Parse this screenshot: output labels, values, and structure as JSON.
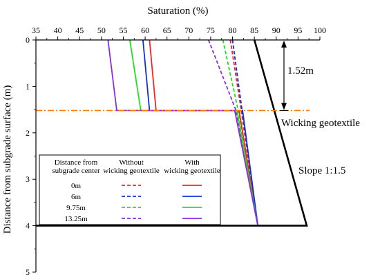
{
  "chart_data": {
    "type": "line",
    "xlabel": "Saturation (%)",
    "ylabel": "Distance from subgrade surface (m)",
    "xlim": [
      35,
      100
    ],
    "ylim": [
      5,
      0
    ],
    "x_ticks": [
      35,
      40,
      45,
      50,
      55,
      60,
      65,
      70,
      75,
      80,
      85,
      90,
      95,
      100
    ],
    "y_ticks": [
      0,
      1,
      2,
      3,
      4,
      5
    ],
    "x_axis_position": "top",
    "grid": false,
    "legend": {
      "placement": "bottom-left",
      "col_headers": [
        "Distance from\nsubgrade center",
        "Without\nwicking geotextile",
        "With\nwicking geotextile"
      ],
      "rows": [
        "0m",
        "6m",
        "9.75m",
        "13.25m"
      ]
    },
    "colors": {
      "0m": "#ff2020",
      "6m": "#1030d0",
      "9.75m": "#20e020",
      "13.25m": "#8a2be2",
      "embankment": "#000000",
      "geotextile_line": "#ff7a00"
    },
    "series": [
      {
        "name": "0m",
        "condition": "Without wicking geotextile",
        "style": "dashed",
        "points": [
          [
            79.5,
            0
          ],
          [
            82.0,
            1.52
          ],
          [
            85.8,
            4
          ]
        ]
      },
      {
        "name": "6m",
        "condition": "Without wicking geotextile",
        "style": "dashed",
        "points": [
          [
            80.0,
            0
          ],
          [
            82.2,
            1.52
          ],
          [
            85.8,
            4
          ]
        ]
      },
      {
        "name": "9.75m",
        "condition": "Without wicking geotextile",
        "style": "dashed",
        "points": [
          [
            77.8,
            0
          ],
          [
            81.3,
            1.52
          ],
          [
            85.8,
            4
          ]
        ]
      },
      {
        "name": "13.25m",
        "condition": "Without wicking geotextile",
        "style": "dashed",
        "points": [
          [
            74.5,
            0
          ],
          [
            80.8,
            1.52
          ],
          [
            85.8,
            4
          ]
        ]
      },
      {
        "name": "0m",
        "condition": "With wicking geotextile",
        "style": "solid",
        "points": [
          [
            61.0,
            0
          ],
          [
            62.5,
            1.52
          ],
          [
            81.5,
            1.52
          ],
          [
            85.8,
            4
          ]
        ]
      },
      {
        "name": "6m",
        "condition": "With wicking geotextile",
        "style": "solid",
        "points": [
          [
            59.5,
            0
          ],
          [
            61.0,
            1.52
          ],
          [
            82.3,
            1.52
          ],
          [
            85.8,
            4
          ]
        ]
      },
      {
        "name": "9.75m",
        "condition": "With wicking geotextile",
        "style": "solid",
        "points": [
          [
            56.5,
            0
          ],
          [
            59.0,
            1.52
          ],
          [
            81.0,
            1.52
          ],
          [
            85.8,
            4
          ]
        ]
      },
      {
        "name": "13.25m",
        "condition": "With wicking geotextile",
        "style": "solid",
        "points": [
          [
            51.5,
            0
          ],
          [
            53.5,
            1.52
          ],
          [
            80.5,
            1.52
          ],
          [
            85.8,
            4
          ]
        ]
      }
    ],
    "embankment_outline": [
      [
        85.0,
        0
      ],
      [
        97.0,
        4
      ],
      [
        35.0,
        4
      ]
    ],
    "geotextile_depth": 1.52,
    "annotations": {
      "depth_label": "1.52m",
      "geotextile_label": "Wicking geotextile",
      "slope_label": "Slope 1:1.5"
    }
  }
}
